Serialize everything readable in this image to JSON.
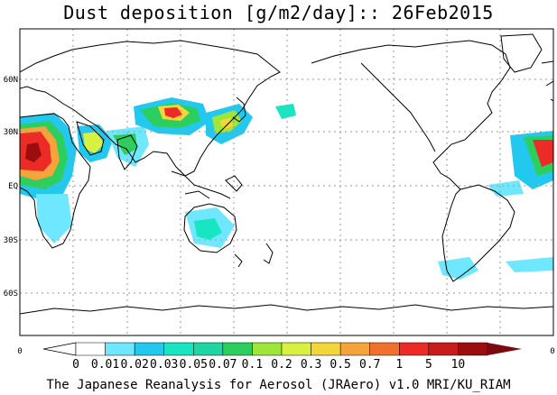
{
  "title": "Dust deposition [g/m2/day]:: 26Feb2015",
  "footer": "The Japanese Reanalysis for Aerosol (JRAero) v1.0 MRI/KU_RIAM",
  "latitude_labels": [
    "60N",
    "30N",
    "EQ",
    "30S",
    "60S"
  ],
  "longitude_labels": [
    "0",
    "0"
  ],
  "colorbar": {
    "labels": [
      "0",
      "0.01",
      "0.02",
      "0.03",
      "0.05",
      "0.07",
      "0.1",
      "0.2",
      "0.3",
      "0.5",
      "0.7",
      "1",
      "5",
      "10"
    ],
    "colors": [
      "#ffffff",
      "#6fe8ff",
      "#22c8ee",
      "#18e6c2",
      "#1fd6a2",
      "#2ccf5d",
      "#9ee63a",
      "#d8f040",
      "#f3d63a",
      "#f4a43a",
      "#f2702e",
      "#ec2b26",
      "#c81b1b",
      "#9c0d10",
      "#7a0a10"
    ]
  },
  "colors": {
    "coastline": "#000000",
    "grid": "#9a9a9a",
    "frame": "#000000"
  },
  "icons": {
    "map": "world-coastline-map",
    "colorbar": "color-scale-bar"
  }
}
